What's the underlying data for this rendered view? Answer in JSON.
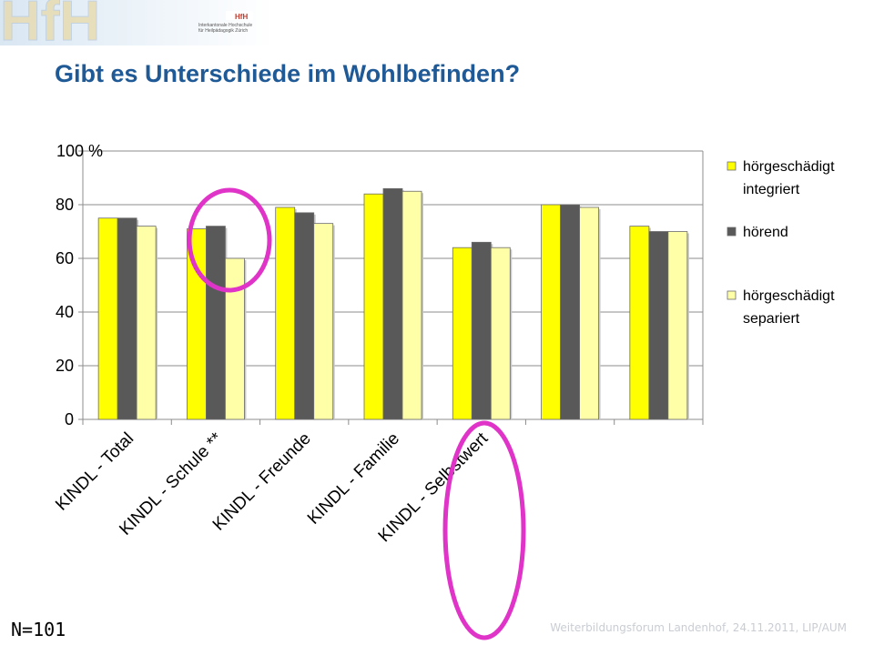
{
  "header": {
    "logo_text": "HfH",
    "logo_badge": "HfH",
    "logo_subtitle_1": "Interkantonale Hochschule",
    "logo_subtitle_2": "für Heilpädagogik Zürich",
    "title": "Gibt es Unterschiede im Wohlbefinden?"
  },
  "footer": {
    "sample_size": "N=101",
    "event": "Weiterbildungsforum Landenhof, 24.11.2011, LIP/AUM"
  },
  "colors": {
    "integriert": "#ffff00",
    "hoerend": "#595959",
    "separiert": "#ffffa8",
    "highlight": "#e033c8",
    "title": "#1f5a96"
  },
  "chart_data": {
    "type": "bar",
    "categories": [
      "KINDL - Total",
      "KINDL - Schule **",
      "KINDL - Freunde",
      "KINDL - Familie",
      "KINDL - Selbstwert",
      "",
      ""
    ],
    "series": [
      {
        "name": "hörgeschädigt integriert",
        "values": [
          75,
          71,
          79,
          84,
          64,
          80,
          72
        ]
      },
      {
        "name": "hörend",
        "values": [
          75,
          72,
          77,
          86,
          66,
          80,
          70
        ]
      },
      {
        "name": "hörgeschädigt separiert",
        "values": [
          72,
          60,
          73,
          85,
          64,
          79,
          70
        ]
      }
    ],
    "legend": [
      "hörgeschädigt integriert",
      "hörend",
      "hörgeschädigt separiert"
    ],
    "legend_lines": [
      [
        "hörgeschädigt",
        "integriert"
      ],
      [
        "hörend"
      ],
      [
        "hörgeschädigt",
        "separiert"
      ]
    ],
    "y_ticks": [
      "0",
      "20",
      "40",
      "60",
      "80",
      "100 %"
    ],
    "ylim": [
      0,
      100
    ],
    "grid": true,
    "legend_position": "right"
  }
}
